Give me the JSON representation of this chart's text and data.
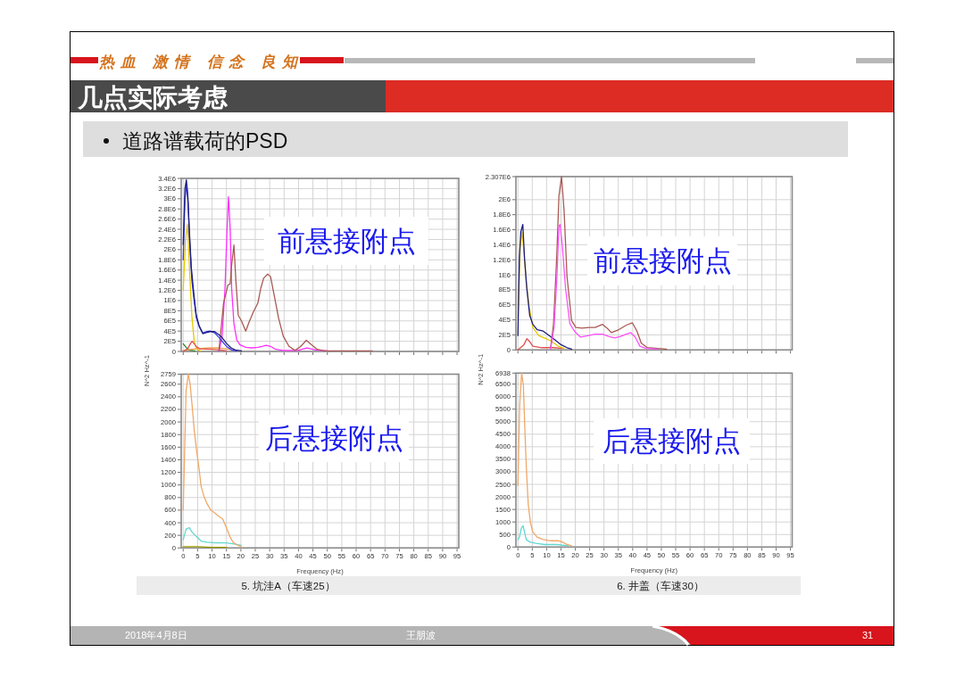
{
  "chart_data": [
    {
      "type": "line",
      "title": "几点实际考虑",
      "subtitle": "道路谱载荷的PSD",
      "annotations": [
        "热血 激情 信念 良知",
        "前悬接附点"
      ],
      "xlim": [
        -0.7,
        95.6
      ],
      "ylim": [
        0,
        3400000
      ],
      "xticks": [
        0,
        5,
        10,
        15,
        20,
        25,
        30,
        35,
        40,
        45,
        50,
        55,
        60,
        65,
        70,
        75,
        80,
        85,
        90,
        95
      ],
      "yticks": [
        0,
        {
          "value": 200000,
          "label": "2E5"
        },
        {
          "value": 400000,
          "label": "4E5"
        },
        {
          "value": 600000,
          "label": "6E5"
        },
        {
          "value": 800000,
          "label": "8E5"
        },
        {
          "value": 1000000,
          "label": "1E6"
        },
        {
          "value": 1200000,
          "label": "1.2E6"
        },
        {
          "value": 1400000,
          "label": "1.4E6"
        },
        {
          "value": 1600000,
          "label": "1.6E6"
        },
        {
          "value": 1800000,
          "label": "1.8E6"
        },
        {
          "value": 2000000,
          "label": "2E6"
        },
        {
          "value": 2200000,
          "label": "2.2E6"
        },
        {
          "value": 2400000,
          "label": "2.4E6"
        },
        {
          "value": 2600000,
          "label": "2.6E6"
        },
        {
          "value": 2800000,
          "label": "2.8E6"
        },
        {
          "value": 3000000,
          "label": "3E6"
        },
        {
          "value": 3200000,
          "label": "3.2E6"
        },
        {
          "value": 3400000,
          "label": "3.4E6"
        }
      ],
      "grid": true,
      "tick_labels": "y",
      "series": [
        {
          "color": "#e6c800",
          "x": [
            0,
            0.8,
            1.5,
            2.2,
            3.0,
            3.8,
            4.6,
            6
          ],
          "values": [
            1200000,
            2200000,
            2500000,
            1600000,
            700000,
            200000,
            50000,
            10000
          ]
        },
        {
          "color": "#2a8a2a",
          "x": [
            0,
            1,
            2,
            4
          ],
          "values": [
            150000,
            80000,
            30000,
            10000
          ]
        },
        {
          "color": "#f0a050",
          "x": [
            0,
            3,
            6,
            9,
            12,
            14,
            16,
            18
          ],
          "values": [
            20000,
            40000,
            60000,
            70000,
            70000,
            60000,
            40000,
            20000
          ]
        },
        {
          "color": "#e05050",
          "x": [
            0,
            1.5,
            2.5,
            3.1,
            3.8,
            4.8,
            6,
            10,
            13,
            15
          ],
          "values": [
            0,
            50000,
            150000,
            200000,
            150000,
            80000,
            50000,
            40000,
            30000,
            10000
          ]
        },
        {
          "color": "#ff30ff",
          "x": [
            12.4,
            13.5,
            14.5,
            15.2,
            15.7,
            16.3,
            16.8,
            17.6,
            18.6,
            19.7,
            21.7,
            23.8,
            25.9,
            27.4,
            28.8,
            30.3,
            32.1,
            34.7,
            39.8,
            42.9,
            46.0,
            50.1
          ],
          "values": [
            0,
            300000,
            1240000,
            2400000,
            3040000,
            2400000,
            1240000,
            540000,
            220000,
            130000,
            80000,
            70000,
            80000,
            100000,
            120000,
            100000,
            40000,
            20000,
            20000,
            70000,
            30000,
            10000
          ]
        },
        {
          "color": "#a85a55",
          "x": [
            12.4,
            14.0,
            15.5,
            16.3,
            16.8,
            17.6,
            18.3,
            19.1,
            20.2,
            21.7,
            22.8,
            24.3,
            25.9,
            26.9,
            27.9,
            29.3,
            30.3,
            31.5,
            33.1,
            34.7,
            36.7,
            38.8,
            40.8,
            42.7,
            44.5,
            46.5,
            49.1,
            65.6
          ],
          "values": [
            20000,
            950000,
            1300000,
            1330000,
            1700000,
            2090000,
            1360000,
            710000,
            600000,
            400000,
            570000,
            770000,
            950000,
            1240000,
            1440000,
            1520000,
            1470000,
            1120000,
            650000,
            300000,
            100000,
            20000,
            100000,
            220000,
            130000,
            40000,
            10000,
            10000
          ]
        },
        {
          "color": "#3c3cf0",
          "x": [
            0,
            0.6,
            1.2,
            1.7,
            2.2,
            3.0,
            3.8,
            4.6,
            5.6,
            6.8,
            8.0,
            9.4,
            11.0,
            12.5,
            13.8,
            15.2,
            16.8,
            18.5
          ],
          "values": [
            1800000,
            3000000,
            3280000,
            2900000,
            2200000,
            1400000,
            1000000,
            650000,
            480000,
            360000,
            390000,
            400000,
            360000,
            270000,
            180000,
            90000,
            30000,
            10000
          ]
        },
        {
          "color": "#1c1c7a",
          "x": [
            0,
            0.6,
            1.1,
            1.6,
            2.1,
            2.8,
            3.7,
            4.5,
            5.5,
            6.8,
            8.0,
            9.3,
            10.9,
            12.4,
            13.5,
            15.0,
            16.6,
            18.1,
            20.2
          ],
          "values": [
            2100000,
            3200000,
            3370000,
            3050000,
            2400000,
            1650000,
            1120000,
            710000,
            510000,
            350000,
            370000,
            390000,
            390000,
            330000,
            270000,
            160000,
            70000,
            30000,
            10000
          ]
        }
      ]
    },
    {
      "type": "line",
      "xlabel": "Frequency (Hz)",
      "ylabel": "N^2 Hz^-1",
      "annotations": [
        "后悬接附点",
        "5. 坑洼A（车速25）"
      ],
      "xlim": [
        -0.7,
        95.6
      ],
      "ylim": [
        0,
        2759
      ],
      "xticks": [
        0,
        5,
        10,
        15,
        20,
        25,
        30,
        35,
        40,
        45,
        50,
        55,
        60,
        65,
        70,
        75,
        80,
        85,
        90,
        95
      ],
      "yticks": [
        0,
        200,
        400,
        600,
        800,
        1000,
        1200,
        1400,
        1600,
        1800,
        2000,
        2200,
        2400,
        2600,
        2759
      ],
      "grid": true,
      "series": [
        {
          "color": "#9a9a00",
          "x": [
            0,
            5,
            10,
            15
          ],
          "values": [
            20,
            20,
            10,
            10
          ]
        },
        {
          "color": "#60d8d0",
          "x": [
            0,
            1.0,
            2.1,
            3.1,
            4.6,
            6.2,
            8.3,
            11.4,
            15.0,
            18.1,
            20.1
          ],
          "values": [
            130,
            300,
            320,
            250,
            180,
            110,
            90,
            80,
            80,
            60,
            40
          ]
        },
        {
          "color": "#f0a868",
          "x": [
            0,
            1.0,
            1.8,
            2.4,
            3.1,
            3.8,
            4.6,
            5.5,
            6.2,
            7.2,
            8.3,
            9.6,
            10.8,
            12.4,
            13.7,
            15.0,
            16.2,
            17.3,
            18.6,
            20.1
          ],
          "values": [
            600,
            2500,
            2759,
            2600,
            2260,
            1880,
            1560,
            1260,
            980,
            820,
            700,
            600,
            560,
            500,
            460,
            320,
            180,
            90,
            50,
            20
          ]
        }
      ]
    },
    {
      "type": "line",
      "annotations": [
        "前悬接附点"
      ],
      "xlim": [
        -0.7,
        95.6
      ],
      "ylim": [
        0,
        2307000
      ],
      "xticks": [
        0,
        5,
        10,
        15,
        20,
        25,
        30,
        35,
        40,
        45,
        50,
        55,
        60,
        65,
        70,
        75,
        80,
        85,
        90,
        95
      ],
      "yticks": [
        0,
        {
          "value": 200000,
          "label": "2E5"
        },
        {
          "value": 400000,
          "label": "4E5"
        },
        {
          "value": 600000,
          "label": "6E5"
        },
        {
          "value": 800000,
          "label": "8E5"
        },
        {
          "value": 1000000,
          "label": "1E6"
        },
        {
          "value": 1200000,
          "label": "1.2E6"
        },
        {
          "value": 1400000,
          "label": "1.4E6"
        },
        {
          "value": 1600000,
          "label": "1.6E6"
        },
        {
          "value": 1800000,
          "label": "1.8E6"
        },
        {
          "value": 2000000,
          "label": "2E6"
        },
        {
          "value": 2307000,
          "label": "2.307E6"
        }
      ],
      "grid": true,
      "tick_labels": "y",
      "series": [
        {
          "color": "#e05050",
          "x": [
            0,
            2.1,
            3.1,
            4.1,
            5.2,
            8.3,
            12.4,
            15.5
          ],
          "values": [
            0,
            70000,
            150000,
            110000,
            50000,
            30000,
            30000,
            20000
          ]
        },
        {
          "color": "#e6c800",
          "x": [
            0,
            0.8,
            1.4,
            2.1,
            2.9,
            3.9,
            5.2,
            7.3,
            9.8,
            11.9,
            14.0,
            16.1
          ],
          "values": [
            420000,
            1380000,
            1570000,
            1300000,
            900000,
            580000,
            300000,
            190000,
            150000,
            110000,
            50000,
            20000
          ]
        },
        {
          "color": "#1c1c7a",
          "x": [
            0,
            0.5,
            1.0,
            1.7,
            2.3,
            3.1,
            4.1,
            5.2,
            6.7,
            8.8,
            10.9,
            13.0,
            15.0,
            17.1,
            18.7
          ],
          "values": [
            190000,
            1220000,
            1570000,
            1670000,
            1220000,
            820000,
            460000,
            340000,
            270000,
            250000,
            190000,
            130000,
            70000,
            30000,
            10000
          ]
        },
        {
          "color": "#a85a55",
          "x": [
            11.4,
            12.4,
            13.5,
            14.3,
            15.2,
            16.1,
            17.1,
            18.7,
            20.2,
            22.3,
            24.9,
            26.9,
            29.5,
            31.1,
            32.6,
            35.2,
            37.8,
            39.9,
            41.5,
            43.0,
            45.1,
            48.7,
            51.8
          ],
          "values": [
            30000,
            340000,
            1220000,
            2050000,
            2307000,
            1850000,
            980000,
            390000,
            300000,
            290000,
            300000,
            300000,
            340000,
            290000,
            230000,
            270000,
            330000,
            360000,
            250000,
            90000,
            30000,
            20000,
            10000
          ]
        },
        {
          "color": "#ff50ff",
          "x": [
            11.4,
            12.6,
            13.5,
            14.3,
            14.7,
            15.5,
            16.6,
            18.1,
            19.7,
            21.8,
            24.4,
            26.9,
            29.5,
            31.6,
            33.7,
            35.8,
            37.8,
            39.4,
            40.9,
            42.5,
            44.6,
            48.7
          ],
          "values": [
            10000,
            300000,
            900000,
            1650000,
            1670000,
            1380000,
            820000,
            350000,
            250000,
            170000,
            190000,
            210000,
            210000,
            180000,
            160000,
            180000,
            210000,
            230000,
            170000,
            50000,
            20000,
            10000
          ]
        }
      ]
    },
    {
      "type": "line",
      "xlabel": "Frequency (Hz)",
      "ylabel": "N^2 Hz^-1",
      "annotations": [
        "后悬接附点",
        "6. 井盖（车速30）",
        "2018年4月8日",
        "王朋波",
        "31"
      ],
      "xlim": [
        -0.7,
        95.6
      ],
      "ylim": [
        0,
        6938
      ],
      "xticks": [
        0,
        5,
        10,
        15,
        20,
        25,
        30,
        35,
        40,
        45,
        50,
        55,
        60,
        65,
        70,
        75,
        80,
        85,
        90,
        95
      ],
      "yticks": [
        0,
        500,
        1000,
        1500,
        2000,
        2500,
        3000,
        3500,
        4000,
        4500,
        5000,
        5500,
        6000,
        6500,
        6938
      ],
      "grid": true,
      "series": [
        {
          "color": "#60d8d0",
          "x": [
            0,
            0.5,
            1.2,
            1.8,
            2.3,
            2.9,
            4.1,
            6.2,
            9.3,
            13.5,
            17.6
          ],
          "values": [
            300,
            400,
            750,
            850,
            600,
            300,
            200,
            150,
            100,
            100,
            50
          ]
        },
        {
          "color": "#f0a868",
          "x": [
            0,
            0.6,
            1.3,
            1.9,
            2.3,
            2.9,
            3.6,
            4.4,
            5.2,
            6.7,
            8.8,
            11.4,
            14.0,
            15.5,
            17.1,
            18.7
          ],
          "values": [
            2450,
            5650,
            6938,
            6450,
            5050,
            3250,
            1700,
            950,
            600,
            400,
            300,
            250,
            250,
            200,
            100,
            50
          ]
        }
      ]
    }
  ]
}
